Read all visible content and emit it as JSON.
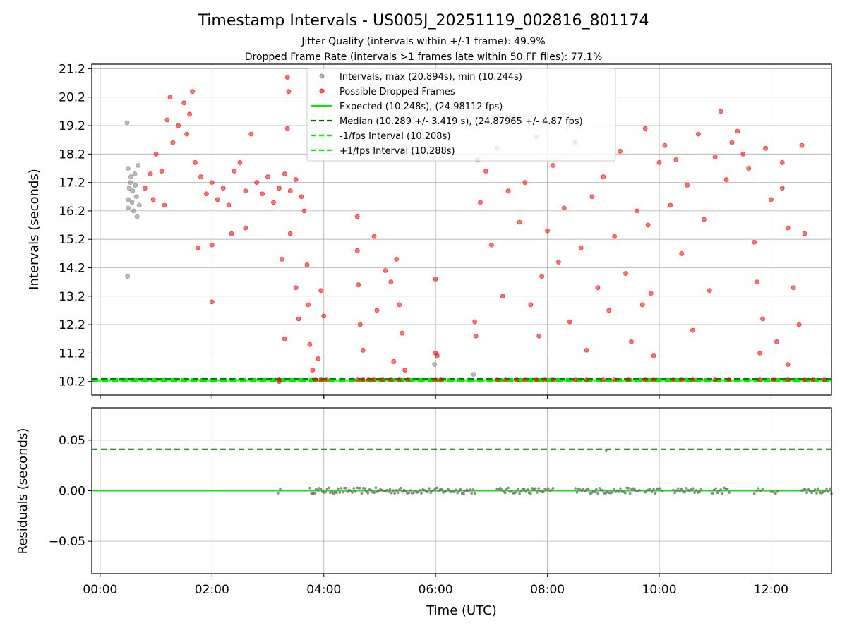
{
  "chart_data": [
    {
      "type": "scatter",
      "title": "Timestamp Intervals - US005J_20251119_002816_801174",
      "subtitle_lines": [
        "Jitter Quality (intervals within +/-1 frame): 49.9%",
        "Dropped Frame Rate (intervals >1 frames late within 50 FF files): 77.1%"
      ],
      "xlabel": "Time (UTC)",
      "ylabel": "Intervals (seconds)",
      "xlim": [
        -0.15,
        13.08
      ],
      "ylim": [
        9.72,
        21.36
      ],
      "grid": true,
      "x_tick_values": [
        0,
        2,
        4,
        6,
        8,
        10,
        12
      ],
      "x_tick_labels": [
        "00:00",
        "02:00",
        "04:00",
        "06:00",
        "08:00",
        "10:00",
        "12:00"
      ],
      "y_tick_values": [
        10.2,
        11.2,
        12.2,
        13.2,
        14.2,
        15.2,
        16.2,
        17.2,
        18.2,
        19.2,
        20.2,
        21.2
      ],
      "y_tick_labels": [
        "10.2",
        "11.2",
        "12.2",
        "13.2",
        "14.2",
        "15.2",
        "16.2",
        "17.2",
        "18.2",
        "19.2",
        "20.2",
        "21.2"
      ],
      "legend_location": "top-center",
      "legend": [
        {
          "label": "Intervals, max (20.894s), min (10.244s)",
          "kind": "marker",
          "color": "#808080"
        },
        {
          "label": "Possible Dropped Frames",
          "kind": "marker",
          "color": "#ff0000"
        },
        {
          "label": "Expected (10.248s), (24.98112 fps)",
          "kind": "solid",
          "color": "#00ee00"
        },
        {
          "label": "Median (10.289 +/- 3.419 s), (24.87965 +/- 4.87 fps)",
          "kind": "dashed",
          "color": "#006400"
        },
        {
          "label": "-1/fps Interval (10.208s)",
          "kind": "dashed",
          "color": "#00ee00"
        },
        {
          "label": "+1/fps Interval (10.288s)",
          "kind": "dashed",
          "color": "#00ee00"
        }
      ],
      "reference_lines": {
        "expected": 10.248,
        "median": 10.289,
        "minus_one_fps": 10.208,
        "plus_one_fps": 10.288
      },
      "series": [
        {
          "name": "Intervals",
          "color": "#808080",
          "points": [
            [
              0.5,
              16.3
            ],
            [
              0.5,
              16.6
            ],
            [
              0.52,
              17.0
            ],
            [
              0.55,
              17.4
            ],
            [
              0.5,
              17.7
            ],
            [
              0.58,
              16.9
            ],
            [
              0.6,
              16.2
            ],
            [
              0.62,
              17.5
            ],
            [
              0.65,
              16.7
            ],
            [
              0.68,
              17.8
            ],
            [
              0.7,
              16.4
            ],
            [
              0.48,
              19.3
            ],
            [
              0.49,
              13.9
            ],
            [
              0.54,
              17.2
            ],
            [
              0.57,
              16.5
            ],
            [
              0.63,
              17.1
            ],
            [
              0.66,
              16.0
            ],
            [
              5.98,
              10.8
            ],
            [
              6.68,
              10.45
            ]
          ]
        },
        {
          "name": "Possible Dropped Frames (early dense band)",
          "color": "#ff0000",
          "points": [
            [
              0.8,
              17.0
            ],
            [
              0.9,
              17.5
            ],
            [
              1.0,
              18.2
            ],
            [
              1.1,
              17.6
            ],
            [
              1.2,
              19.4
            ],
            [
              1.25,
              20.2
            ],
            [
              1.3,
              18.6
            ],
            [
              1.4,
              19.2
            ],
            [
              1.5,
              20.0
            ],
            [
              1.55,
              18.9
            ],
            [
              1.6,
              19.6
            ],
            [
              1.65,
              20.4
            ],
            [
              1.7,
              17.9
            ],
            [
              1.8,
              17.4
            ],
            [
              1.9,
              16.8
            ],
            [
              2.0,
              17.2
            ],
            [
              2.1,
              16.6
            ],
            [
              2.2,
              17.0
            ],
            [
              2.3,
              16.4
            ],
            [
              2.4,
              17.6
            ],
            [
              2.5,
              17.9
            ],
            [
              2.6,
              16.9
            ],
            [
              2.7,
              18.9
            ],
            [
              2.8,
              17.2
            ],
            [
              2.9,
              16.8
            ],
            [
              3.0,
              17.4
            ],
            [
              3.1,
              16.5
            ],
            [
              3.2,
              17.0
            ],
            [
              3.3,
              17.5
            ],
            [
              3.4,
              16.9
            ],
            [
              3.5,
              17.3
            ],
            [
              3.6,
              16.7
            ],
            [
              3.65,
              16.2
            ],
            [
              1.75,
              14.9
            ],
            [
              2.0,
              13.0
            ],
            [
              2.0,
              15.0
            ],
            [
              1.15,
              16.4
            ],
            [
              0.95,
              16.6
            ],
            [
              2.35,
              15.4
            ],
            [
              2.6,
              15.6
            ]
          ]
        },
        {
          "name": "Possible Dropped Frames (scattered)",
          "color": "#ff0000",
          "points": [
            [
              3.2,
              10.2
            ],
            [
              3.25,
              14.5
            ],
            [
              3.3,
              11.7
            ],
            [
              3.35,
              20.9
            ],
            [
              3.37,
              20.4
            ],
            [
              3.35,
              19.1
            ],
            [
              3.4,
              15.4
            ],
            [
              3.5,
              13.5
            ],
            [
              3.55,
              12.4
            ],
            [
              3.7,
              14.3
            ],
            [
              3.72,
              12.9
            ],
            [
              3.75,
              11.5
            ],
            [
              3.8,
              10.6
            ],
            [
              3.9,
              11.0
            ],
            [
              3.95,
              13.4
            ],
            [
              4.0,
              12.5
            ],
            [
              4.6,
              16.0
            ],
            [
              4.6,
              14.8
            ],
            [
              4.62,
              13.6
            ],
            [
              4.65,
              12.2
            ],
            [
              4.7,
              11.3
            ],
            [
              4.9,
              15.3
            ],
            [
              4.95,
              12.7
            ],
            [
              5.1,
              14.1
            ],
            [
              5.2,
              13.7
            ],
            [
              5.25,
              10.9
            ],
            [
              5.3,
              14.5
            ],
            [
              5.35,
              12.9
            ],
            [
              5.4,
              11.9
            ],
            [
              5.45,
              10.6
            ],
            [
              6.0,
              13.8
            ],
            [
              6.0,
              11.2
            ],
            [
              6.03,
              11.1
            ],
            [
              6.7,
              12.3
            ],
            [
              6.72,
              11.8
            ],
            [
              6.75,
              18.0
            ],
            [
              6.8,
              16.5
            ],
            [
              6.9,
              17.6
            ],
            [
              7.0,
              15.0
            ],
            [
              7.1,
              18.4
            ],
            [
              7.2,
              13.2
            ],
            [
              7.3,
              16.9
            ],
            [
              7.4,
              19.5
            ],
            [
              7.5,
              15.8
            ],
            [
              7.6,
              17.2
            ],
            [
              7.7,
              12.9
            ],
            [
              7.8,
              18.8
            ],
            [
              7.85,
              11.8
            ],
            [
              7.9,
              13.9
            ],
            [
              8.0,
              15.5
            ],
            [
              8.1,
              17.8
            ],
            [
              8.2,
              14.4
            ],
            [
              8.3,
              16.3
            ],
            [
              8.4,
              12.3
            ],
            [
              8.5,
              18.6
            ],
            [
              8.6,
              14.9
            ],
            [
              8.7,
              11.3
            ],
            [
              8.8,
              16.7
            ],
            [
              8.9,
              13.5
            ],
            [
              9.0,
              17.4
            ],
            [
              9.1,
              12.7
            ],
            [
              9.2,
              15.3
            ],
            [
              9.3,
              18.3
            ],
            [
              9.4,
              14.0
            ],
            [
              9.5,
              11.6
            ],
            [
              9.6,
              16.2
            ],
            [
              9.7,
              12.9
            ],
            [
              9.75,
              19.1
            ],
            [
              9.8,
              15.7
            ],
            [
              9.85,
              13.3
            ],
            [
              9.9,
              11.1
            ],
            [
              10.0,
              17.9
            ],
            [
              10.1,
              18.5
            ],
            [
              10.2,
              16.4
            ],
            [
              10.3,
              18.0
            ],
            [
              10.4,
              14.7
            ],
            [
              10.5,
              17.1
            ],
            [
              10.6,
              12.0
            ],
            [
              10.7,
              18.9
            ],
            [
              10.8,
              15.9
            ],
            [
              10.9,
              13.4
            ],
            [
              11.0,
              18.1
            ],
            [
              11.1,
              19.7
            ],
            [
              11.2,
              17.3
            ],
            [
              11.3,
              18.6
            ],
            [
              11.4,
              19.0
            ],
            [
              11.5,
              18.2
            ],
            [
              11.6,
              17.7
            ],
            [
              11.7,
              15.1
            ],
            [
              11.75,
              13.7
            ],
            [
              11.8,
              11.2
            ],
            [
              11.9,
              18.4
            ],
            [
              12.0,
              16.6
            ],
            [
              12.1,
              11.6
            ],
            [
              12.2,
              17.9
            ],
            [
              12.3,
              15.6
            ],
            [
              12.4,
              13.5
            ],
            [
              12.5,
              12.2
            ],
            [
              12.55,
              18.5
            ],
            [
              12.6,
              15.4
            ],
            [
              12.3,
              10.8
            ],
            [
              12.2,
              17.0
            ],
            [
              11.85,
              12.4
            ]
          ]
        },
        {
          "name": "Possible Dropped Frames (baseline clusters)",
          "color": "#ff0000",
          "points": [
            [
              3.2,
              10.25
            ],
            [
              3.85,
              10.25
            ],
            [
              3.95,
              10.25
            ],
            [
              4.05,
              10.25
            ],
            [
              4.6,
              10.25
            ],
            [
              4.7,
              10.25
            ],
            [
              4.8,
              10.25
            ],
            [
              4.9,
              10.25
            ],
            [
              5.05,
              10.25
            ],
            [
              5.2,
              10.25
            ],
            [
              5.35,
              10.25
            ],
            [
              5.5,
              10.25
            ],
            [
              6.0,
              10.25
            ],
            [
              6.1,
              10.25
            ],
            [
              7.1,
              10.25
            ],
            [
              7.25,
              10.25
            ],
            [
              7.45,
              10.25
            ],
            [
              7.6,
              10.25
            ],
            [
              7.8,
              10.25
            ],
            [
              7.95,
              10.25
            ],
            [
              8.1,
              10.25
            ],
            [
              8.5,
              10.25
            ],
            [
              8.7,
              10.25
            ],
            [
              9.0,
              10.25
            ],
            [
              9.2,
              10.25
            ],
            [
              9.45,
              10.25
            ],
            [
              9.75,
              10.25
            ],
            [
              9.9,
              10.25
            ],
            [
              10.25,
              10.25
            ],
            [
              10.4,
              10.25
            ],
            [
              10.6,
              10.25
            ],
            [
              11.0,
              10.25
            ],
            [
              11.25,
              10.25
            ],
            [
              11.8,
              10.25
            ],
            [
              12.05,
              10.25
            ],
            [
              12.3,
              10.25
            ],
            [
              12.6,
              10.25
            ],
            [
              12.75,
              10.25
            ],
            [
              12.95,
              10.25
            ]
          ]
        }
      ]
    },
    {
      "type": "scatter",
      "xlabel": "Time (UTC)",
      "ylabel": "Residuals (seconds)",
      "xlim": [
        -0.15,
        13.08
      ],
      "ylim": [
        -0.082,
        0.082
      ],
      "grid": true,
      "x_tick_values": [
        0,
        2,
        4,
        6,
        8,
        10,
        12
      ],
      "x_tick_labels": [
        "00:00",
        "02:00",
        "04:00",
        "06:00",
        "08:00",
        "10:00",
        "12:00"
      ],
      "y_tick_values": [
        0.05,
        0.0,
        -0.05
      ],
      "y_tick_labels": [
        "0.05",
        "0.00",
        "−0.05"
      ],
      "reference_lines": {
        "expected": 0.0,
        "median": 0.041
      },
      "series": [
        {
          "name": "Residuals",
          "color": "#6e6e6e",
          "segments": [
            [
              3.18,
              3.22
            ],
            [
              3.75,
              6.7
            ],
            [
              7.1,
              8.1
            ],
            [
              8.5,
              9.65
            ],
            [
              9.75,
              10.05
            ],
            [
              10.25,
              10.75
            ],
            [
              10.95,
              11.25
            ],
            [
              11.7,
              11.85
            ],
            [
              12.0,
              12.12
            ],
            [
              12.55,
              13.08
            ]
          ],
          "points": [
            [
              9.05,
              0.04
            ]
          ]
        }
      ]
    }
  ]
}
